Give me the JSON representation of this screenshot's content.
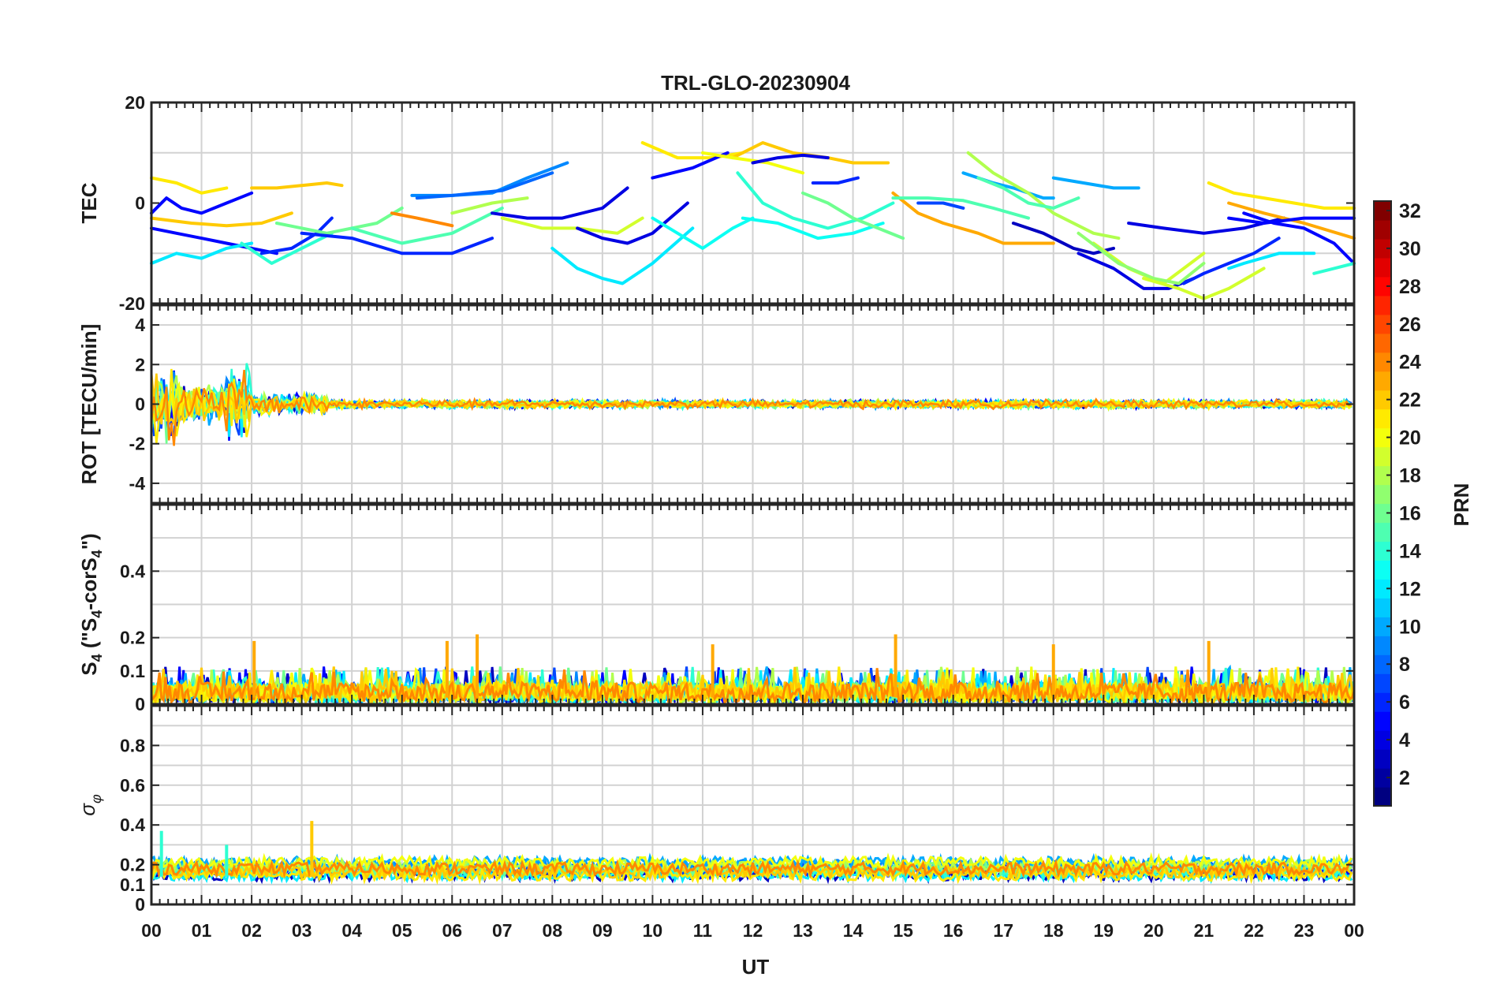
{
  "chart_data": [
    {
      "type": "line",
      "title": "TRL-GLO-20230904",
      "ylabel": "TEC",
      "ylim": [
        -20,
        20
      ],
      "yticks": [
        {
          "v": 20,
          "t": "20"
        },
        {
          "v": 0,
          "t": "0"
        },
        {
          "v": -20,
          "t": "-20"
        }
      ],
      "ygrid": [
        -10,
        10
      ],
      "grid": true,
      "series": [
        {
          "name": "PRN 5",
          "prn": 5,
          "x": [
            0.0,
            0.3,
            0.6,
            1.0,
            1.5,
            2.0
          ],
          "values": [
            -2,
            1,
            -1,
            -2,
            0,
            2
          ]
        },
        {
          "name": "PRN 21",
          "prn": 21,
          "x": [
            0.0,
            0.5,
            1.0,
            1.5
          ],
          "values": [
            5,
            4,
            2,
            3
          ]
        },
        {
          "name": "PRN 22",
          "prn": 22,
          "x": [
            2.0,
            2.5,
            3.0,
            3.5,
            3.8
          ],
          "values": [
            3,
            3,
            3.5,
            4,
            3.5
          ]
        },
        {
          "name": "PRN 5",
          "prn": 5,
          "x": [
            0.0,
            0.5,
            1.0,
            1.5,
            2.0,
            2.5
          ],
          "values": [
            -5,
            -6,
            -7,
            -8,
            -9,
            -10
          ]
        },
        {
          "name": "PRN 12",
          "prn": 12,
          "x": [
            0.0,
            0.5,
            1.0,
            1.5,
            2.0
          ],
          "values": [
            -12,
            -10,
            -11,
            -9,
            -8
          ]
        },
        {
          "name": "PRN 22",
          "prn": 22,
          "x": [
            0.0,
            0.8,
            1.5,
            2.2,
            2.8
          ],
          "values": [
            -3,
            -4,
            -4.5,
            -4,
            -2
          ]
        },
        {
          "name": "PRN 14",
          "prn": 14,
          "x": [
            1.8,
            2.4,
            3.0,
            3.6
          ],
          "values": [
            -8,
            -12,
            -9,
            -6
          ]
        },
        {
          "name": "PRN 6",
          "prn": 6,
          "x": [
            2.2,
            2.8,
            3.3,
            3.6
          ],
          "values": [
            -10,
            -9,
            -6,
            -3
          ]
        },
        {
          "name": "PRN 16",
          "prn": 16,
          "x": [
            2.5,
            3.5,
            4.5,
            5.0
          ],
          "values": [
            -4,
            -6,
            -4,
            -1
          ]
        },
        {
          "name": "PRN 6",
          "prn": 6,
          "x": [
            3.0,
            4.0,
            5.0,
            6.0,
            6.8
          ],
          "values": [
            -6,
            -7,
            -10,
            -10,
            -7
          ]
        },
        {
          "name": "PRN 15",
          "prn": 15,
          "x": [
            4.0,
            5.0,
            6.0,
            7.0
          ],
          "values": [
            -5,
            -8,
            -6,
            -1
          ]
        },
        {
          "name": "PRN 24",
          "prn": 24,
          "x": [
            4.8,
            5.3,
            6.0
          ],
          "values": [
            -2,
            -3,
            -4.5
          ]
        },
        {
          "name": "PRN 9",
          "prn": 9,
          "x": [
            5.2,
            6.0,
            6.8,
            7.5,
            8.3
          ],
          "values": [
            1.5,
            1.5,
            2,
            5,
            8
          ]
        },
        {
          "name": "PRN 8",
          "prn": 8,
          "x": [
            5.3,
            6.0,
            7.0,
            8.0
          ],
          "values": [
            1,
            1.5,
            2.5,
            6
          ]
        },
        {
          "name": "PRN 18",
          "prn": 18,
          "x": [
            6.0,
            6.8,
            7.5
          ],
          "values": [
            -2,
            0,
            1
          ]
        },
        {
          "name": "PRN 4",
          "prn": 4,
          "x": [
            6.8,
            7.5,
            8.2,
            9.0,
            9.5
          ],
          "values": [
            -2,
            -3,
            -3,
            -1,
            3
          ]
        },
        {
          "name": "PRN 19",
          "prn": 19,
          "x": [
            7.0,
            7.8,
            8.5,
            9.3,
            9.8
          ],
          "values": [
            -3,
            -5,
            -5,
            -6,
            -3
          ]
        },
        {
          "name": "PRN 12",
          "prn": 12,
          "x": [
            8.0,
            8.5,
            9.0,
            9.4,
            10.0,
            10.8
          ],
          "values": [
            -9,
            -13,
            -15,
            -16,
            -12,
            -5
          ]
        },
        {
          "name": "PRN 4",
          "prn": 4,
          "x": [
            8.5,
            9.0,
            9.5,
            10.0,
            10.7
          ],
          "values": [
            -5,
            -7,
            -8,
            -6,
            0
          ]
        },
        {
          "name": "PRN 21",
          "prn": 21,
          "x": [
            9.8,
            10.5,
            11.2,
            11.8
          ],
          "values": [
            12,
            9,
            9,
            10
          ]
        },
        {
          "name": "PRN 5",
          "prn": 5,
          "x": [
            10.0,
            10.8,
            11.5
          ],
          "values": [
            5,
            7,
            10
          ]
        },
        {
          "name": "PRN 13",
          "prn": 13,
          "x": [
            10.0,
            10.5,
            11.0,
            11.6,
            12.0
          ],
          "values": [
            -3,
            -6,
            -9,
            -5,
            -3
          ]
        },
        {
          "name": "PRN 22",
          "prn": 22,
          "x": [
            11.6,
            12.2,
            12.8,
            13.5,
            14.0,
            14.7
          ],
          "values": [
            9,
            12,
            10,
            9,
            8,
            8
          ]
        },
        {
          "name": "PRN 20",
          "prn": 20,
          "x": [
            11.0,
            11.6,
            12.3,
            13.0
          ],
          "values": [
            10,
            9,
            8,
            6
          ]
        },
        {
          "name": "PRN 4",
          "prn": 4,
          "x": [
            12.0,
            12.5,
            13.0,
            13.5
          ],
          "values": [
            8,
            9,
            9.5,
            9
          ]
        },
        {
          "name": "PRN 14",
          "prn": 14,
          "x": [
            11.7,
            12.2,
            12.8,
            13.5,
            14.2,
            14.8
          ],
          "values": [
            6,
            0,
            -3,
            -5,
            -3,
            0
          ]
        },
        {
          "name": "PRN 13",
          "prn": 13,
          "x": [
            11.8,
            12.5,
            13.3,
            14.0,
            14.6
          ],
          "values": [
            -3,
            -4,
            -7,
            -6,
            -4
          ]
        },
        {
          "name": "PRN 6",
          "prn": 6,
          "x": [
            13.2,
            13.7,
            14.1
          ],
          "values": [
            4,
            4,
            5
          ]
        },
        {
          "name": "PRN 16",
          "prn": 16,
          "x": [
            13.0,
            13.5,
            14.0,
            14.5,
            15.0
          ],
          "values": [
            2,
            0,
            -3,
            -5,
            -7
          ]
        },
        {
          "name": "PRN 23",
          "prn": 23,
          "x": [
            14.8,
            15.3,
            15.8,
            16.5,
            17.0,
            18.0
          ],
          "values": [
            2,
            -2,
            -4,
            -6,
            -8,
            -8
          ]
        },
        {
          "name": "PRN 15",
          "prn": 15,
          "x": [
            14.8,
            15.5,
            16.2,
            16.8,
            17.5
          ],
          "values": [
            1,
            1,
            0.5,
            -1,
            -3
          ]
        },
        {
          "name": "PRN 7",
          "prn": 7,
          "x": [
            15.3,
            15.8,
            16.2
          ],
          "values": [
            0,
            0,
            -1
          ]
        },
        {
          "name": "PRN 10",
          "prn": 10,
          "x": [
            16.2,
            16.8,
            17.2,
            17.8,
            18.0
          ],
          "values": [
            6,
            4,
            3,
            1,
            1
          ]
        },
        {
          "name": "PRN 18",
          "prn": 18,
          "x": [
            16.3,
            16.8,
            17.5,
            18.0,
            18.8,
            19.3
          ],
          "values": [
            10,
            6,
            2,
            -2,
            -6,
            -7
          ]
        },
        {
          "name": "PRN 15",
          "prn": 15,
          "x": [
            16.5,
            17.0,
            17.5,
            18.0,
            18.5
          ],
          "values": [
            5,
            3,
            0,
            -1,
            1
          ]
        },
        {
          "name": "PRN 10",
          "prn": 10,
          "x": [
            18.0,
            18.6,
            19.2,
            19.7
          ],
          "values": [
            5,
            4,
            3,
            3
          ]
        },
        {
          "name": "PRN 3",
          "prn": 3,
          "x": [
            17.2,
            17.8,
            18.4,
            18.8,
            19.2
          ],
          "values": [
            -4,
            -6,
            -9,
            -10,
            -9
          ]
        },
        {
          "name": "PRN 4",
          "prn": 4,
          "x": [
            18.5,
            19.2,
            19.8,
            20.3,
            20.8
          ],
          "values": [
            -10,
            -13,
            -17,
            -17,
            -15
          ]
        },
        {
          "name": "PRN 19",
          "prn": 19,
          "x": [
            18.8,
            19.5,
            20.2,
            21.0
          ],
          "values": [
            -8,
            -13,
            -16,
            -10
          ]
        },
        {
          "name": "PRN 17",
          "prn": 17,
          "x": [
            18.5,
            19.3,
            20.0,
            20.5,
            21.0
          ],
          "values": [
            -6,
            -12,
            -15,
            -16,
            -12
          ]
        },
        {
          "name": "PRN 19",
          "prn": 19,
          "x": [
            19.8,
            20.5,
            21.0,
            21.5,
            22.2
          ],
          "values": [
            -15,
            -17,
            -19,
            -17,
            -13
          ]
        },
        {
          "name": "PRN 6",
          "prn": 6,
          "x": [
            20.6,
            21.0,
            21.5,
            22.0,
            22.5
          ],
          "values": [
            -16,
            -14,
            -12,
            -10,
            -7
          ]
        },
        {
          "name": "PRN 4",
          "prn": 4,
          "x": [
            19.5,
            20.2,
            21.0,
            21.8,
            22.6
          ],
          "values": [
            -4,
            -5,
            -6,
            -5,
            -3
          ]
        },
        {
          "name": "PRN 21",
          "prn": 21,
          "x": [
            21.1,
            21.6,
            22.2,
            22.8,
            23.4,
            24.0
          ],
          "values": [
            4,
            2,
            1,
            0,
            -1,
            -1
          ]
        },
        {
          "name": "PRN 23",
          "prn": 23,
          "x": [
            21.5,
            22.2,
            23.0,
            24.0
          ],
          "values": [
            0,
            -2,
            -4,
            -7
          ]
        },
        {
          "name": "PRN 5",
          "prn": 5,
          "x": [
            21.8,
            22.4,
            23.0,
            23.6,
            24.0
          ],
          "values": [
            -2,
            -4,
            -5,
            -8,
            -12
          ]
        },
        {
          "name": "PRN 5",
          "prn": 5,
          "x": [
            21.5,
            22.2,
            23.0,
            24.0
          ],
          "values": [
            -3,
            -4,
            -3,
            -3
          ]
        },
        {
          "name": "PRN 12",
          "prn": 12,
          "x": [
            21.5,
            21.8,
            22.5,
            23.2
          ],
          "values": [
            -13,
            -12,
            -10,
            -10
          ]
        },
        {
          "name": "PRN 14",
          "prn": 14,
          "x": [
            23.2,
            23.6,
            24.0
          ],
          "values": [
            -14,
            -13,
            -12
          ]
        }
      ]
    },
    {
      "type": "line",
      "ylabel": "ROT [TECU/min]",
      "ylim": [
        -5,
        5
      ],
      "yticks": [
        {
          "v": 4,
          "t": "4"
        },
        {
          "v": 2,
          "t": "2"
        },
        {
          "v": 0,
          "t": "0"
        },
        {
          "v": -2,
          "t": "-2"
        },
        {
          "v": -4,
          "t": "-4"
        }
      ],
      "ygrid": [
        -4,
        -2,
        0,
        2,
        4
      ],
      "grid": true,
      "noise": [
        {
          "from": 0.0,
          "to": 0.5,
          "amp": 2.3
        },
        {
          "from": 0.5,
          "to": 1.5,
          "amp": 1.2
        },
        {
          "from": 1.5,
          "to": 2.0,
          "amp": 2.2
        },
        {
          "from": 2.0,
          "to": 3.5,
          "amp": 0.6
        },
        {
          "from": 3.5,
          "to": 24.0,
          "amp": 0.25
        }
      ]
    },
    {
      "type": "line",
      "ylabel": "S4 (\"S4-corS4\")",
      "ylim": [
        0,
        0.6
      ],
      "yticks": [
        {
          "v": 0.4,
          "t": "0.4"
        },
        {
          "v": 0.2,
          "t": "0.2"
        },
        {
          "v": 0.1,
          "t": "0.1"
        },
        {
          "v": 0,
          "t": "0"
        }
      ],
      "ygrid": [
        0.1,
        0.2,
        0.3,
        0.4,
        0.5
      ],
      "grid": true,
      "peaks": [
        {
          "x": 2.05,
          "v": 0.19
        },
        {
          "x": 5.9,
          "v": 0.19
        },
        {
          "x": 6.5,
          "v": 0.21
        },
        {
          "x": 11.2,
          "v": 0.18
        },
        {
          "x": 14.85,
          "v": 0.21
        },
        {
          "x": 18.0,
          "v": 0.18
        },
        {
          "x": 21.1,
          "v": 0.19
        }
      ]
    },
    {
      "type": "line",
      "ylabel": "σφ",
      "ylim": [
        0,
        1
      ],
      "yticks": [
        {
          "v": 0.8,
          "t": "0.8"
        },
        {
          "v": 0.6,
          "t": "0.6"
        },
        {
          "v": 0.4,
          "t": "0.4"
        },
        {
          "v": 0.2,
          "t": "0.2"
        },
        {
          "v": 0.1,
          "t": "0.1"
        },
        {
          "v": 0,
          "t": "0"
        }
      ],
      "ygrid": [
        0.1,
        0.2,
        0.3,
        0.4,
        0.5,
        0.6,
        0.7,
        0.8,
        0.9
      ],
      "grid": true,
      "peaks": [
        {
          "x": 0.2,
          "v": 0.37
        },
        {
          "x": 1.5,
          "v": 0.3
        },
        {
          "x": 3.2,
          "v": 0.42
        }
      ]
    }
  ],
  "xaxis": {
    "label": "UT",
    "xlim": [
      0,
      24
    ],
    "ticks": [
      "00",
      "01",
      "02",
      "03",
      "04",
      "05",
      "06",
      "07",
      "08",
      "09",
      "10",
      "11",
      "12",
      "13",
      "14",
      "15",
      "16",
      "17",
      "18",
      "19",
      "20",
      "21",
      "22",
      "23",
      "00"
    ]
  },
  "colorbar": {
    "label": "PRN",
    "range": [
      1,
      32
    ],
    "colormap": "jet",
    "ticks": [
      "32",
      "30",
      "28",
      "26",
      "24",
      "22",
      "20",
      "18",
      "16",
      "14",
      "12",
      "10",
      "8",
      "6",
      "4",
      "2"
    ]
  }
}
